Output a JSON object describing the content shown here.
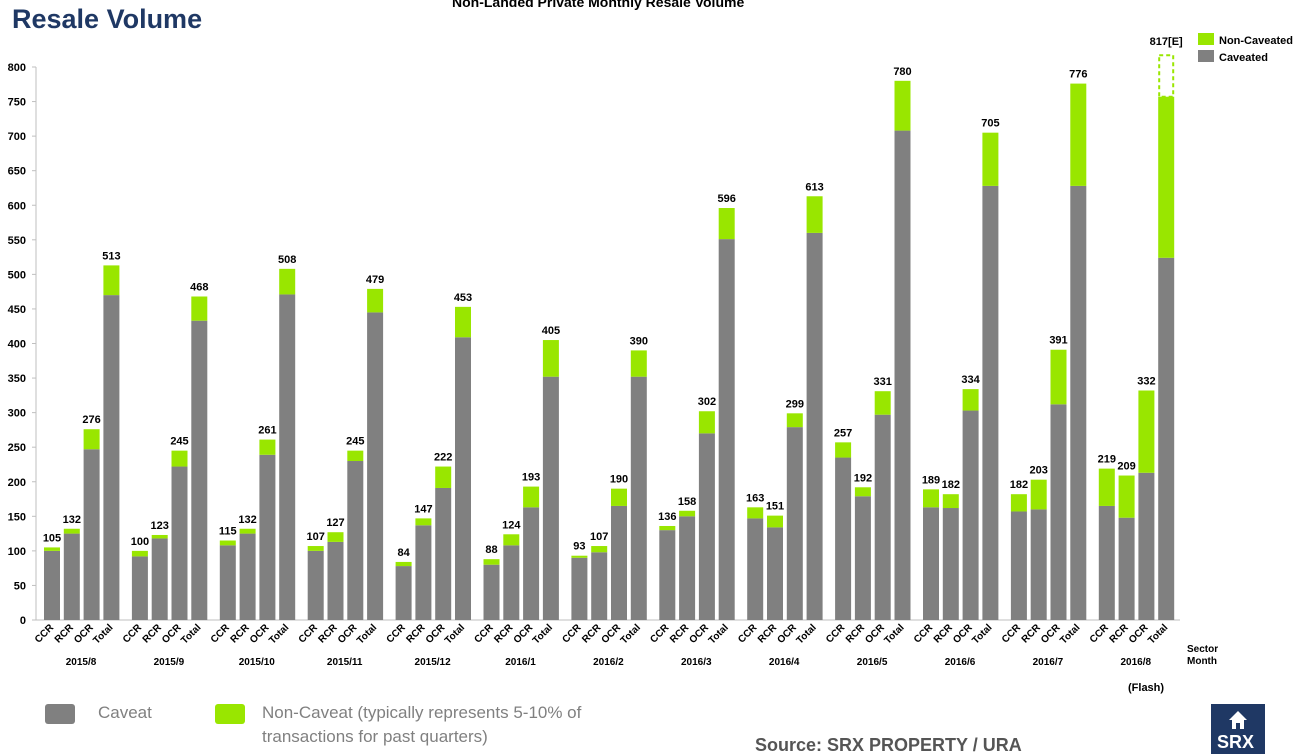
{
  "page_title": "Resale Volume",
  "chart_title": "Non-Landed Private Monthly Resale Volume",
  "flash_note": "(Flash)",
  "footer_legend": {
    "caveat": "Caveat",
    "non_caveat_line1": "Non-Caveat (typically represents 5-10% of",
    "non_caveat_line2": "transactions for past quarters)"
  },
  "source": "Source:  SRX PROPERTY / URA",
  "logo_text": "SRX",
  "colors": {
    "caveated": "#808080",
    "non_caveated": "#99e600",
    "title": "#1f3864"
  },
  "chart_data": {
    "type": "bar",
    "stacked": true,
    "ylim": [
      0,
      800
    ],
    "yticks": [
      0,
      50,
      100,
      150,
      200,
      250,
      300,
      350,
      400,
      450,
      500,
      550,
      600,
      650,
      700,
      750,
      800
    ],
    "grid": false,
    "legend_position": "top-right",
    "legend": [
      "Non-Caveated",
      "Caveated"
    ],
    "axis_right_labels": [
      "Sector",
      "Month"
    ],
    "sectors": [
      "CCR",
      "RCR",
      "OCR",
      "Total"
    ],
    "months": [
      "2015/8",
      "2015/9",
      "2015/10",
      "2015/11",
      "2015/12",
      "2016/1",
      "2016/2",
      "2016/3",
      "2016/4",
      "2016/5",
      "2016/6",
      "2016/7",
      "2016/8"
    ],
    "series": [
      {
        "name": "Caveated",
        "values": [
          [
            100,
            125,
            247,
            470
          ],
          [
            92,
            118,
            222,
            433
          ],
          [
            108,
            125,
            239,
            471
          ],
          [
            100,
            113,
            230,
            445
          ],
          [
            78,
            137,
            191,
            409
          ],
          [
            80,
            108,
            163,
            352
          ],
          [
            90,
            98,
            165,
            352
          ],
          [
            130,
            150,
            270,
            551
          ],
          [
            147,
            134,
            279,
            560
          ],
          [
            235,
            179,
            297,
            708
          ],
          [
            163,
            162,
            303,
            628
          ],
          [
            157,
            160,
            312,
            628
          ],
          [
            165,
            148,
            213,
            524
          ]
        ]
      },
      {
        "name": "Non-Caveated",
        "values": [
          [
            5,
            7,
            29,
            43
          ],
          [
            8,
            5,
            23,
            35
          ],
          [
            7,
            7,
            22,
            37
          ],
          [
            7,
            14,
            15,
            34
          ],
          [
            6,
            10,
            31,
            44
          ],
          [
            8,
            16,
            30,
            53
          ],
          [
            3,
            9,
            25,
            38
          ],
          [
            6,
            8,
            32,
            45
          ],
          [
            16,
            17,
            20,
            53
          ],
          [
            22,
            13,
            34,
            72
          ],
          [
            26,
            20,
            31,
            77
          ],
          [
            25,
            43,
            79,
            148
          ],
          [
            54,
            61,
            119,
            233
          ]
        ]
      }
    ],
    "totals": [
      [
        105,
        132,
        276,
        513
      ],
      [
        100,
        123,
        245,
        468
      ],
      [
        115,
        132,
        261,
        508
      ],
      [
        107,
        127,
        245,
        479
      ],
      [
        84,
        147,
        222,
        453
      ],
      [
        88,
        124,
        193,
        405
      ],
      [
        93,
        107,
        190,
        390
      ],
      [
        136,
        158,
        302,
        596
      ],
      [
        163,
        151,
        299,
        613
      ],
      [
        257,
        192,
        331,
        780
      ],
      [
        189,
        182,
        334,
        705
      ],
      [
        182,
        203,
        391,
        776
      ],
      [
        219,
        209,
        332,
        757
      ]
    ],
    "estimate": {
      "month": "2016/8",
      "sector": "Total",
      "value": 817,
      "label": "817[E]"
    }
  }
}
